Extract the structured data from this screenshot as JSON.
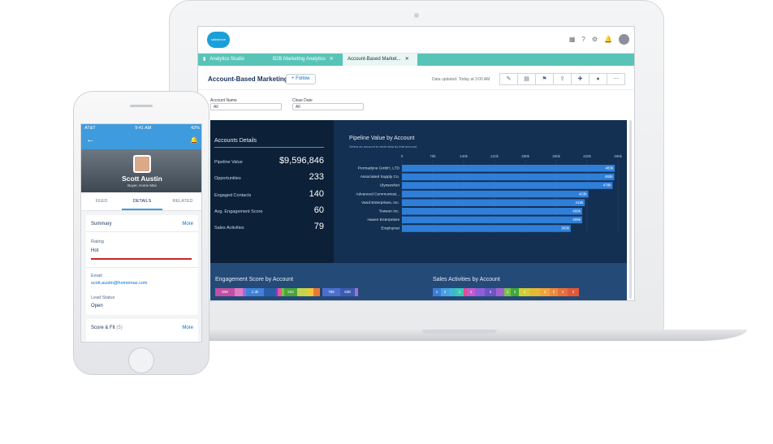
{
  "laptop": {
    "header": {
      "logo": "salesforce"
    },
    "tabs": [
      {
        "label": "Analytics Studio",
        "close": ""
      },
      {
        "label": "B2B Marketing Analytics",
        "close": "✕"
      },
      {
        "label": "Account-Based Market...",
        "close": "✕"
      }
    ],
    "page": {
      "title": "Account-Based Marketing",
      "follow_label": "+ Follow",
      "updated": "Data updated: Today at 3:00 AM"
    },
    "filters": [
      {
        "label": "Account Name",
        "value": "All"
      },
      {
        "label": "Close Date",
        "value": "All"
      }
    ],
    "accounts": {
      "title": "Accounts Details",
      "rows": [
        {
          "label": "Pipeline Value",
          "value": "$9,596,846"
        },
        {
          "label": "Opportunities",
          "value": "233"
        },
        {
          "label": "Engaged Contacts",
          "value": "140"
        },
        {
          "label": "Avg. Engagement Score",
          "value": "60"
        },
        {
          "label": "Sales Activities",
          "value": "79"
        }
      ]
    },
    "engagement": {
      "title": "Engagement Score by Account",
      "labels": [
        "839",
        "1.3k",
        "522",
        "766",
        "638"
      ]
    },
    "sales_activities": {
      "title": "Sales Activities by Account",
      "labels": [
        "1",
        "3",
        "1",
        "1",
        "3",
        "1",
        "3",
        "2",
        "3",
        "2",
        "1",
        "2",
        "2"
      ]
    }
  },
  "chart_data": {
    "type": "bar",
    "orientation": "horizontal",
    "title": "Pipeline Value by Account",
    "subtitle": "Select an account to facet data by that account.",
    "x_ticks": [
      "0",
      "70k",
      "140k",
      "210k",
      "280k",
      "350k",
      "420k",
      "490k"
    ],
    "xlim": [
      0,
      490000
    ],
    "categories": [
      "Permadyne GmbH, LTD",
      "Associated Supply Co.",
      "UlyssesNet",
      "Advanced Communicat...",
      "Vand Enterprises, Inc.",
      "Towson Inc.",
      "Haven Enterprises",
      "Employnet"
    ],
    "values": [
      483000,
      482000,
      478000,
      423000,
      415000,
      409000,
      409000,
      383000
    ],
    "value_labels": [
      "483k",
      "482k",
      "478k",
      "423k",
      "415k",
      "409k",
      "409k",
      "383k"
    ],
    "color": "#2f7fd9"
  },
  "phone": {
    "status": {
      "carrier": "AT&T",
      "time": "9:41 AM",
      "battery": "42%"
    },
    "name": "Scott Austin",
    "role": "Buyer, Home Max",
    "tabs": [
      "FEED",
      "DETAILS",
      "RELATED"
    ],
    "summary": {
      "title": "Summary",
      "more": "More",
      "rating_label": "Rating",
      "rating_value": "Hot",
      "email_label": "Email",
      "email_value": "scott.austin@homemax.com",
      "lead_status_label": "Lead Status",
      "lead_status_value": "Open"
    },
    "score": {
      "title": "Score & Fit",
      "count": "(5)",
      "more": "More"
    }
  }
}
